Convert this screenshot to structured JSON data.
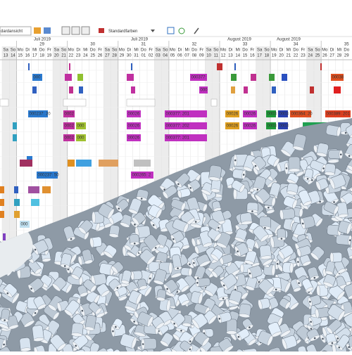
{
  "toolbar": {
    "view_select": "dardansicht",
    "color_select": "Standardfarben"
  },
  "timeline": {
    "month_labels": [
      "Juli 2019",
      "Juli 2019",
      "August 2019",
      "August 2019"
    ],
    "weeks": [
      "29",
      "30",
      "31",
      "32",
      "33",
      "34",
      "35"
    ],
    "weekdays": [
      "Sa",
      "So",
      "Mo",
      "Di",
      "Mi",
      "Do",
      "Fr",
      "Sa",
      "So",
      "Mo",
      "Di",
      "Mi",
      "Do",
      "Fr",
      "Sa",
      "So",
      "Mo",
      "Di",
      "Mi",
      "Do",
      "Fr",
      "Sa",
      "So",
      "Mo",
      "Di",
      "Mi",
      "Do",
      "Fr",
      "Sa",
      "So",
      "Mo",
      "Di",
      "Mi",
      "Do",
      "Fr",
      "Sa",
      "So",
      "Mo",
      "Di",
      "Mi",
      "Do",
      "Fr",
      "Sa",
      "So",
      "Mo",
      "Di",
      "Mi",
      "Do"
    ],
    "day_numbers": [
      "13",
      "14",
      "15",
      "16",
      "17",
      "18",
      "19",
      "20",
      "21",
      "22",
      "23",
      "24",
      "25",
      "26",
      "27",
      "28",
      "29",
      "30",
      "31",
      "01",
      "02",
      "03",
      "04",
      "05",
      "06",
      "07",
      "08",
      "09",
      "10",
      "11",
      "12",
      "13",
      "14",
      "15",
      "16",
      "17",
      "18",
      "19",
      "20",
      "21",
      "22",
      "23",
      "24",
      "25",
      "26",
      "27",
      "28",
      "29"
    ]
  },
  "bar_labels": [
    "000",
    "000377:",
    "00038",
    "000",
    "000237: 20",
    "0002",
    "00026",
    "000377: 201",
    "00026",
    "00026",
    "0003",
    "0003",
    "000364: 20",
    "000389: 201",
    "0002",
    "000",
    "00026",
    "000377: 202",
    "00026",
    "00026",
    "0003",
    "0003",
    "0002",
    "000",
    "00026",
    "000377: 201",
    "000237: 50",
    "000265: 2",
    "000"
  ]
}
